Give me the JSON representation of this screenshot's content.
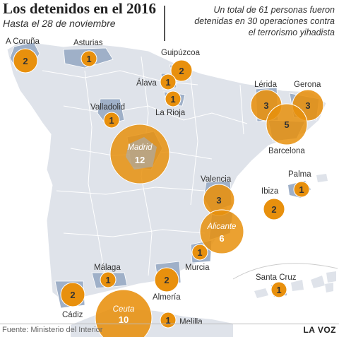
{
  "title": "Los detenidos en el 2016",
  "subtitle": "Hasta el 28 de noviembre",
  "note": "Un total de 61 personas fueron detenidas en 30 operaciones contra el terrorismo yihadista",
  "source": "Fuente: Ministerio del Interior",
  "brand": "LA VOZ",
  "colors": {
    "land": "#dfe3ea",
    "highlight": "#9fb0c8",
    "circle": "#e8900d",
    "border": "#ffffff"
  },
  "locations": [
    {
      "name": "A Coruña",
      "value": "2"
    },
    {
      "name": "Asturias",
      "value": "1"
    },
    {
      "name": "Guipúzcoa",
      "value": "2"
    },
    {
      "name": "Álava",
      "value": "1"
    },
    {
      "name": "La Rioja",
      "value": "1"
    },
    {
      "name": "Valladolid",
      "value": "1"
    },
    {
      "name": "Madrid",
      "value": "12"
    },
    {
      "name": "Lérida",
      "value": "3"
    },
    {
      "name": "Gerona",
      "value": "3"
    },
    {
      "name": "Barcelona",
      "value": "5"
    },
    {
      "name": "Palma",
      "value": "1"
    },
    {
      "name": "Ibiza",
      "value": "2"
    },
    {
      "name": "Valencia",
      "value": "3"
    },
    {
      "name": "Alicante",
      "value": "6"
    },
    {
      "name": "Murcia",
      "value": "1"
    },
    {
      "name": "Málaga",
      "value": "1"
    },
    {
      "name": "Almería",
      "value": "2"
    },
    {
      "name": "Cádiz",
      "value": "2"
    },
    {
      "name": "Ceuta",
      "value": "10"
    },
    {
      "name": "Melilla",
      "value": "1"
    },
    {
      "name": "Santa Cruz",
      "value": "1"
    }
  ]
}
